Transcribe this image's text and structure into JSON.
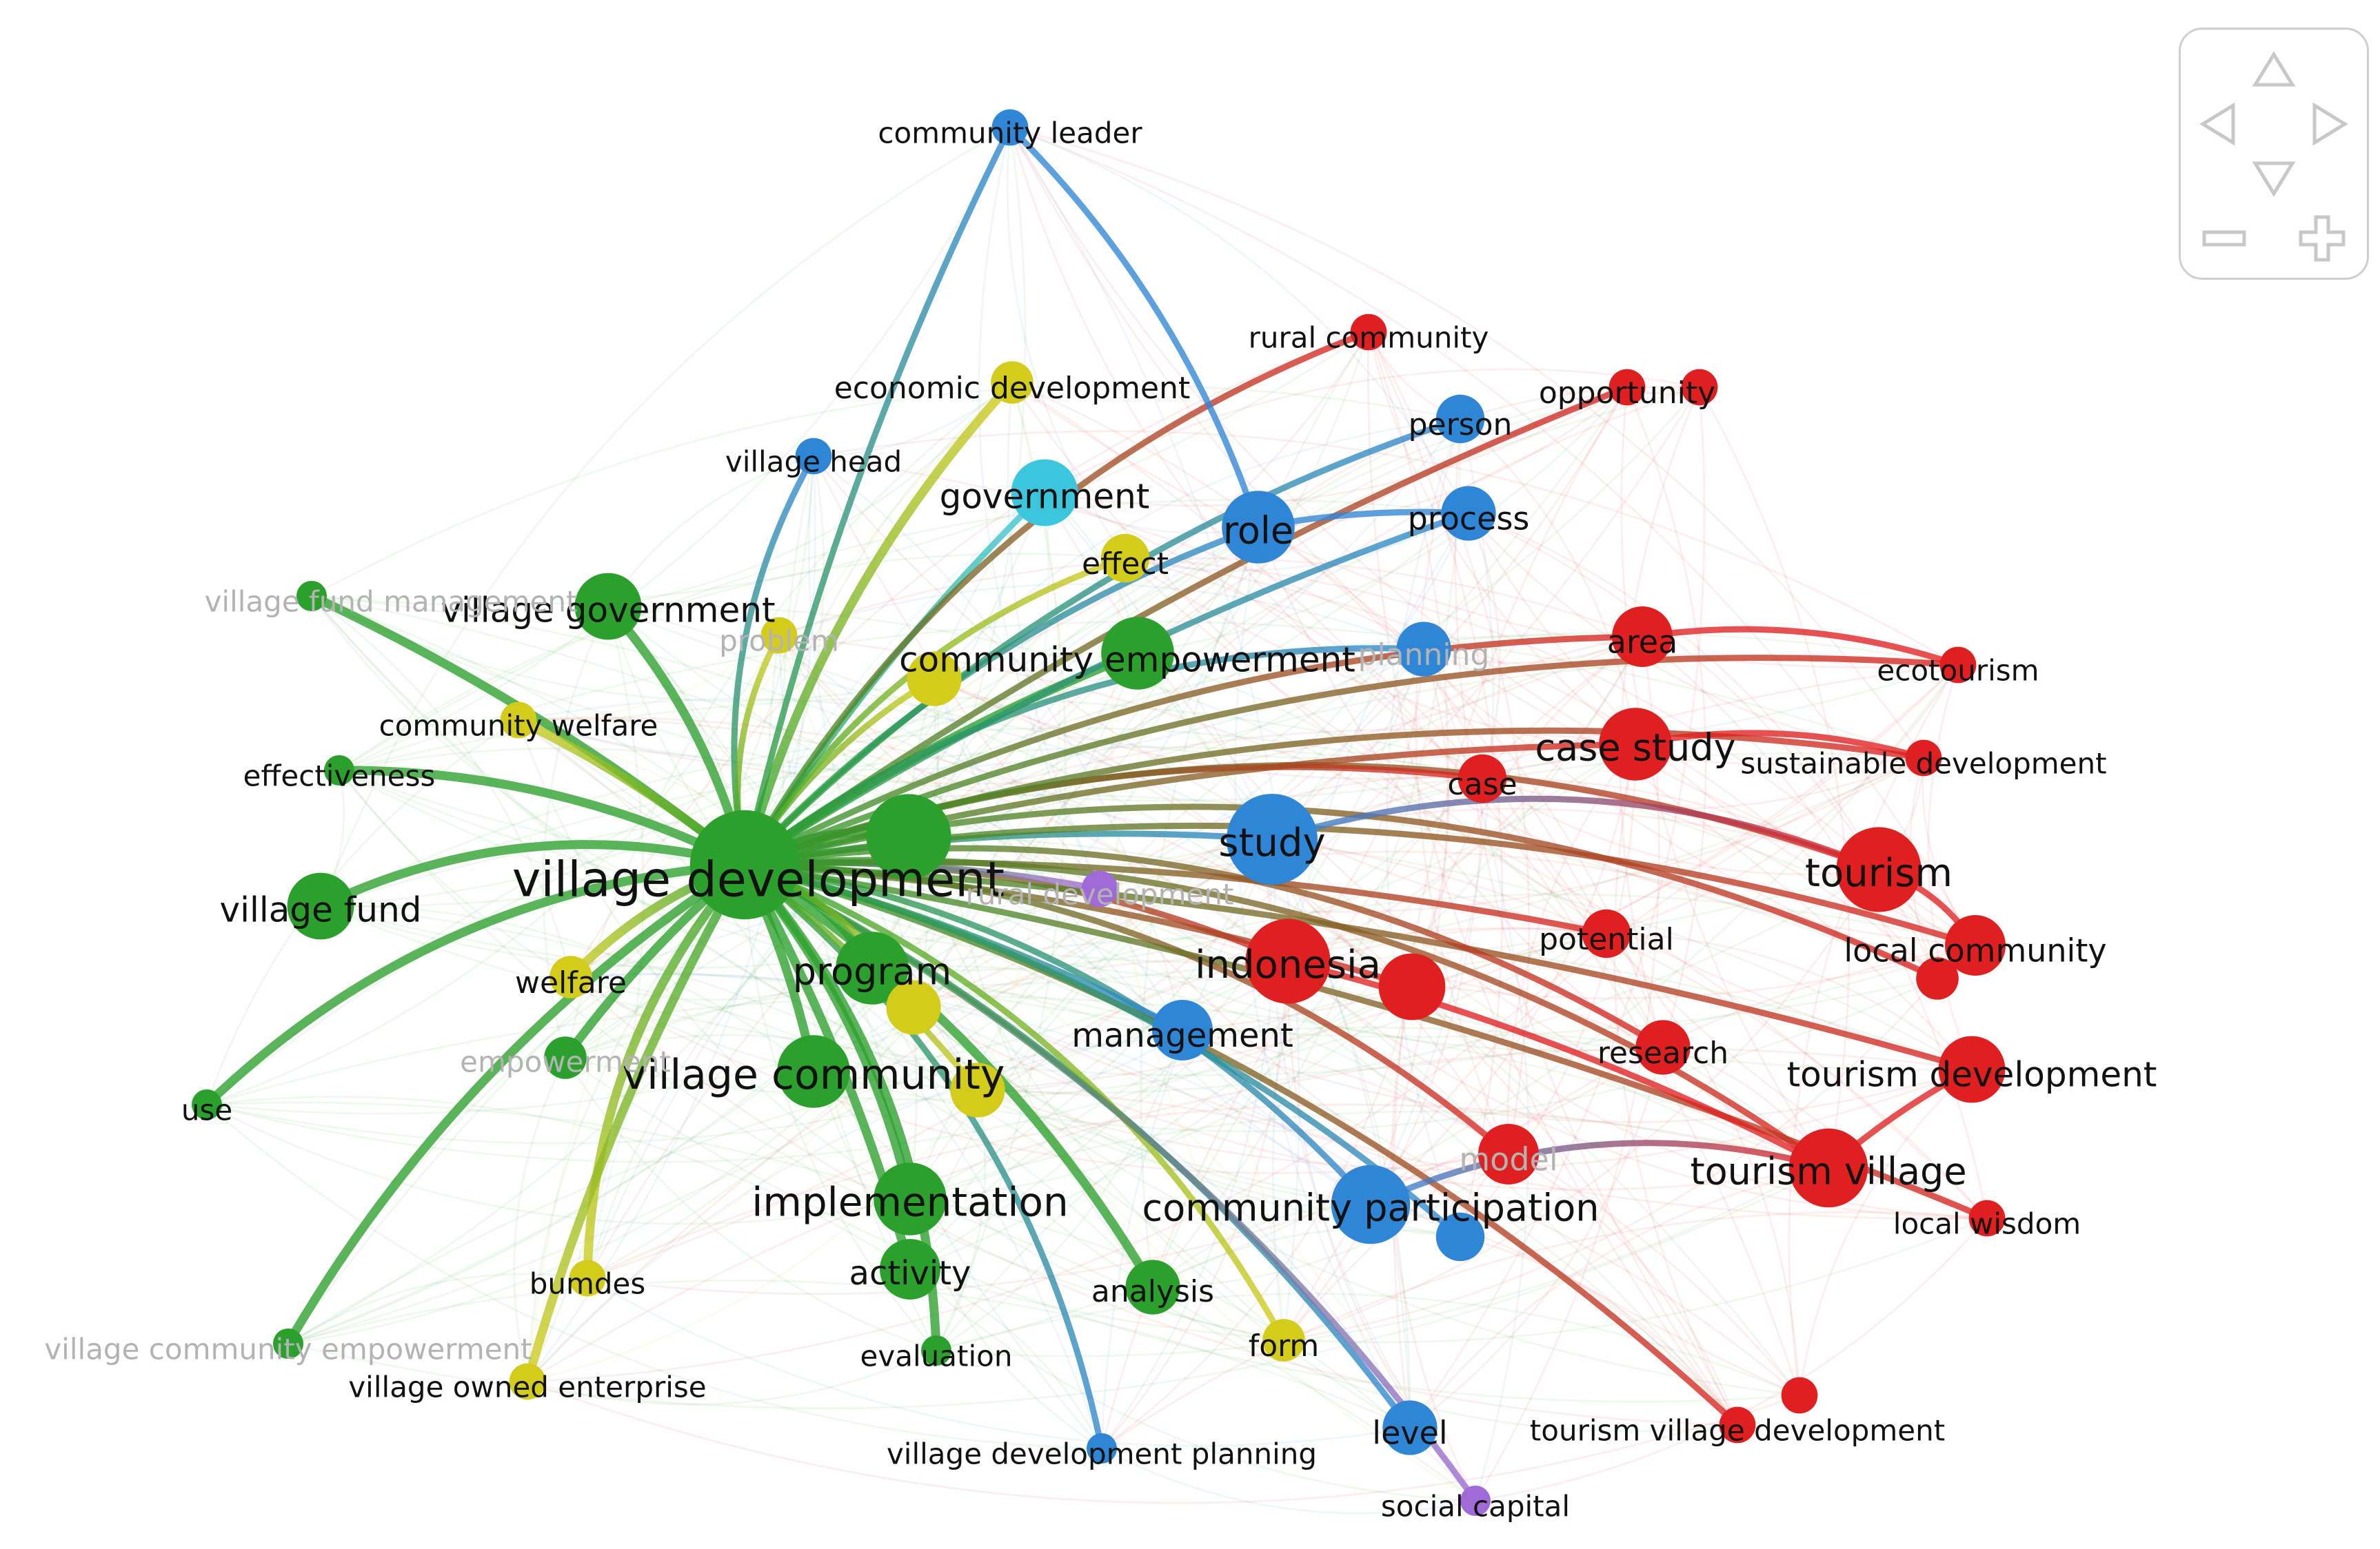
{
  "colors": {
    "green": "#2ca02c",
    "red": "#e02020",
    "blue": "#2f86d6",
    "yellow": "#d4cc1a",
    "cyan": "#3cc6de",
    "purple": "#a06ad6"
  },
  "nodes": [
    {
      "id": "village_development",
      "label": "village development",
      "cluster": "green",
      "weight": 10
    },
    {
      "id": "village_community",
      "label": "village community",
      "cluster": "green",
      "weight": 6
    },
    {
      "id": "implementation",
      "label": "implementation",
      "cluster": "green",
      "weight": 6
    },
    {
      "id": "program",
      "label": "program",
      "cluster": "green",
      "weight": 5
    },
    {
      "id": "community_empowerment",
      "label": "community empowerment",
      "cluster": "green",
      "weight": 5
    },
    {
      "id": "village_government",
      "label": "village government",
      "cluster": "green",
      "weight": 4
    },
    {
      "id": "village_fund",
      "label": "village fund",
      "cluster": "green",
      "weight": 4
    },
    {
      "id": "activity",
      "label": "activity",
      "cluster": "green",
      "weight": 4
    },
    {
      "id": "analysis",
      "label": "analysis",
      "cluster": "green",
      "weight": 3
    },
    {
      "id": "green_unlabeled",
      "label": "",
      "cluster": "green",
      "weight": 6
    },
    {
      "id": "empowerment",
      "label": "empowerment",
      "cluster": "green",
      "weight": 3,
      "faded": true
    },
    {
      "id": "effectiveness",
      "label": "effectiveness",
      "cluster": "green",
      "weight": 2
    },
    {
      "id": "use",
      "label": "use",
      "cluster": "green",
      "weight": 2
    },
    {
      "id": "village_fund_management",
      "label": "village fund management",
      "cluster": "green",
      "weight": 2,
      "faded": true
    },
    {
      "id": "village_community_empowerment",
      "label": "village community empowerment",
      "cluster": "green",
      "weight": 2,
      "faded": true
    },
    {
      "id": "evaluation",
      "label": "evaluation",
      "cluster": "green",
      "weight": 2
    },
    {
      "id": "tourism",
      "label": "tourism",
      "cluster": "red",
      "weight": 6
    },
    {
      "id": "indonesia",
      "label": "indonesia",
      "cluster": "red",
      "weight": 7
    },
    {
      "id": "case_study",
      "label": "case study",
      "cluster": "red",
      "weight": 5
    },
    {
      "id": "tourism_village",
      "label": "tourism village",
      "cluster": "red",
      "weight": 5
    },
    {
      "id": "tourism_development",
      "label": "tourism development",
      "cluster": "red",
      "weight": 4
    },
    {
      "id": "local_community",
      "label": "local community",
      "cluster": "red",
      "weight": 4
    },
    {
      "id": "area",
      "label": "area",
      "cluster": "red",
      "weight": 4
    },
    {
      "id": "model",
      "label": "model",
      "cluster": "red",
      "weight": 4,
      "faded": true
    },
    {
      "id": "research",
      "label": "research",
      "cluster": "red",
      "weight": 3
    },
    {
      "id": "potential",
      "label": "potential",
      "cluster": "red",
      "weight": 3
    },
    {
      "id": "case",
      "label": "case",
      "cluster": "red",
      "weight": 3
    },
    {
      "id": "red_unlabeled",
      "label": "",
      "cluster": "red",
      "weight": 5
    },
    {
      "id": "rural_community",
      "label": "rural community",
      "cluster": "red",
      "weight": 2
    },
    {
      "id": "opportunity",
      "label": "opportunity",
      "cluster": "red",
      "weight": 2
    },
    {
      "id": "ecotourism",
      "label": "ecotourism",
      "cluster": "red",
      "weight": 2
    },
    {
      "id": "sustainable_development",
      "label": "sustainable development",
      "cluster": "red",
      "weight": 2
    },
    {
      "id": "local_wisdom",
      "label": "local wisdom",
      "cluster": "red",
      "weight": 2
    },
    {
      "id": "tourism_village_development",
      "label": "tourism village development",
      "cluster": "red",
      "weight": 2
    },
    {
      "id": "red_small_a",
      "label": "",
      "cluster": "red",
      "weight": 2
    },
    {
      "id": "red_small_b",
      "label": "",
      "cluster": "red",
      "weight": 2
    },
    {
      "id": "red_small_c",
      "label": "",
      "cluster": "red",
      "weight": 3
    },
    {
      "id": "study",
      "label": "study",
      "cluster": "blue",
      "weight": 6
    },
    {
      "id": "community_participation",
      "label": "community participation",
      "cluster": "blue",
      "weight": 5
    },
    {
      "id": "role",
      "label": "role",
      "cluster": "blue",
      "weight": 5
    },
    {
      "id": "management",
      "label": "management",
      "cluster": "blue",
      "weight": 4
    },
    {
      "id": "process",
      "label": "process",
      "cluster": "blue",
      "weight": 3
    },
    {
      "id": "planning",
      "label": "planning",
      "cluster": "blue",
      "weight": 3,
      "faded": true
    },
    {
      "id": "person",
      "label": "person",
      "cluster": "blue",
      "weight": 3
    },
    {
      "id": "level",
      "label": "level",
      "cluster": "blue",
      "weight": 3
    },
    {
      "id": "village_head",
      "label": "village head",
      "cluster": "blue",
      "weight": 2
    },
    {
      "id": "community_leader",
      "label": "community leader",
      "cluster": "blue",
      "weight": 2
    },
    {
      "id": "village_development_planning",
      "label": "village development planning",
      "cluster": "blue",
      "weight": 2
    },
    {
      "id": "blue_unlabeled",
      "label": "",
      "cluster": "blue",
      "weight": 3
    },
    {
      "id": "government",
      "label": "government",
      "cluster": "cyan",
      "weight": 4
    },
    {
      "id": "economic_development",
      "label": "economic development",
      "cluster": "yellow",
      "weight": 3
    },
    {
      "id": "effect",
      "label": "effect",
      "cluster": "yellow",
      "weight": 3
    },
    {
      "id": "community_welfare",
      "label": "community welfare",
      "cluster": "yellow",
      "weight": 3
    },
    {
      "id": "welfare",
      "label": "welfare",
      "cluster": "yellow",
      "weight": 3
    },
    {
      "id": "bumdes",
      "label": "bumdes",
      "cluster": "yellow",
      "weight": 2
    },
    {
      "id": "village_owned_enterprise",
      "label": "village owned enterprise",
      "cluster": "yellow",
      "weight": 2
    },
    {
      "id": "form",
      "label": "form",
      "cluster": "yellow",
      "weight": 3
    },
    {
      "id": "problem",
      "label": "problem",
      "cluster": "yellow",
      "weight": 2,
      "faded": true
    },
    {
      "id": "yellow_unlabeled_a",
      "label": "",
      "cluster": "yellow",
      "weight": 3
    },
    {
      "id": "yellow_unlabeled_b",
      "label": "",
      "cluster": "yellow",
      "weight": 3
    },
    {
      "id": "yellow_unlabeled_c",
      "label": "",
      "cluster": "yellow",
      "weight": 3
    },
    {
      "id": "rural_development",
      "label": "rural development",
      "cluster": "purple",
      "weight": 2,
      "faded": true
    },
    {
      "id": "social_capital",
      "label": "social capital",
      "cluster": "purple",
      "weight": 2
    }
  ],
  "edges": [
    [
      "village_development",
      "village_community"
    ],
    [
      "village_development",
      "implementation"
    ],
    [
      "village_development",
      "program"
    ],
    [
      "village_development",
      "community_empowerment"
    ],
    [
      "village_development",
      "village_government"
    ],
    [
      "village_development",
      "village_fund"
    ],
    [
      "village_development",
      "activity"
    ],
    [
      "village_development",
      "analysis"
    ],
    [
      "village_development",
      "green_unlabeled"
    ],
    [
      "village_development",
      "empowerment"
    ],
    [
      "village_development",
      "effectiveness"
    ],
    [
      "village_development",
      "use"
    ],
    [
      "village_development",
      "village_fund_management"
    ],
    [
      "village_development",
      "village_community_empowerment"
    ],
    [
      "village_development",
      "evaluation"
    ],
    [
      "village_development",
      "community_welfare"
    ],
    [
      "village_development",
      "welfare"
    ],
    [
      "village_development",
      "bumdes"
    ],
    [
      "village_development",
      "village_owned_enterprise"
    ],
    [
      "village_development",
      "economic_development"
    ],
    [
      "village_development",
      "effect"
    ],
    [
      "village_development",
      "government"
    ],
    [
      "village_development",
      "role"
    ],
    [
      "village_development",
      "village_head"
    ],
    [
      "village_development",
      "study"
    ],
    [
      "village_development",
      "indonesia"
    ],
    [
      "village_development",
      "tourism"
    ],
    [
      "village_development",
      "case_study"
    ],
    [
      "village_development",
      "area"
    ],
    [
      "village_development",
      "tourism_village"
    ],
    [
      "village_development",
      "tourism_development"
    ],
    [
      "village_development",
      "local_community"
    ],
    [
      "village_development",
      "community_participation"
    ],
    [
      "village_development",
      "management"
    ],
    [
      "village_development",
      "level"
    ],
    [
      "village_development",
      "form"
    ],
    [
      "village_development",
      "rural_development"
    ],
    [
      "village_development",
      "social_capital"
    ],
    [
      "village_development",
      "village_development_planning"
    ],
    [
      "village_development",
      "process"
    ],
    [
      "village_development",
      "person"
    ],
    [
      "village_development",
      "rural_community"
    ],
    [
      "village_development",
      "opportunity"
    ],
    [
      "village_development",
      "ecotourism"
    ],
    [
      "village_development",
      "research"
    ],
    [
      "village_development",
      "potential"
    ],
    [
      "village_development",
      "case"
    ],
    [
      "village_development",
      "model"
    ],
    [
      "village_development",
      "local_wisdom"
    ],
    [
      "village_development",
      "tourism_village_development"
    ],
    [
      "village_development",
      "planning"
    ],
    [
      "village_development",
      "red_unlabeled"
    ],
    [
      "village_development",
      "yellow_unlabeled_a"
    ],
    [
      "village_development",
      "yellow_unlabeled_b"
    ],
    [
      "village_development",
      "yellow_unlabeled_c"
    ],
    [
      "village_development",
      "sustainable_development"
    ],
    [
      "village_development",
      "problem"
    ],
    [
      "village_development",
      "community_leader"
    ],
    [
      "village_development",
      "blue_unlabeled"
    ],
    [
      "village_development",
      "red_small_c"
    ],
    [
      "role",
      "process"
    ],
    [
      "role",
      "community_leader"
    ],
    [
      "study",
      "tourism"
    ],
    [
      "indonesia",
      "tourism_village"
    ],
    [
      "case_study",
      "sustainable_development"
    ],
    [
      "tourism",
      "local_community"
    ],
    [
      "tourism_village",
      "tourism_development"
    ],
    [
      "area",
      "ecotourism"
    ],
    [
      "community_participation",
      "tourism_village"
    ]
  ],
  "nav": {
    "up": "up-arrow-icon",
    "down": "down-arrow-icon",
    "left": "left-arrow-icon",
    "right": "right-arrow-icon",
    "zoom_out": "minus-icon",
    "zoom_in": "plus-icon"
  }
}
